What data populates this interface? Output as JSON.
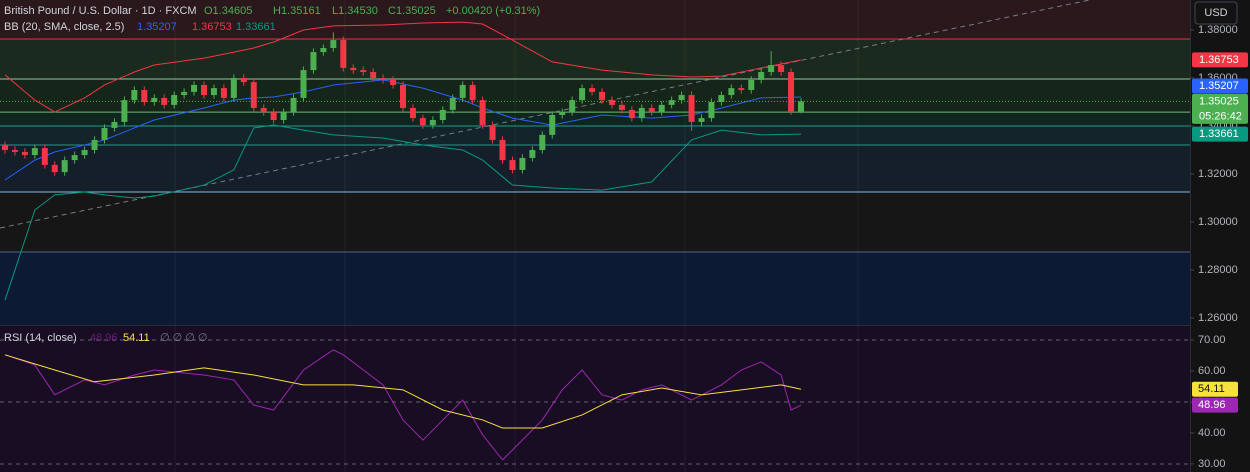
{
  "chart_data": [
    {
      "type": "candlestick",
      "title": "British Pound / U.S. Dollar · 1D · FXCM",
      "ohlc_labels": [
        "O1.34605",
        "H1.35161",
        "L1.34530",
        "C1.35025",
        "+0.00420 (+0.31%)"
      ],
      "currency": "USD",
      "up_color": "#4caf50",
      "down_color": "#f23645",
      "ylim": [
        1.2571,
        1.3925
      ],
      "yticks": [
        {
          "value": 1.38,
          "label": "1.38000"
        },
        {
          "value": 1.36,
          "label": "1.36000"
        },
        {
          "value": 1.34,
          "label": "1.34000"
        },
        {
          "value": 1.32,
          "label": "1.32000"
        },
        {
          "value": 1.3,
          "label": "1.30000"
        },
        {
          "value": 1.28,
          "label": "1.28000"
        },
        {
          "value": 1.26,
          "label": "1.26000"
        }
      ],
      "candles": [
        [
          1.332,
          1.3335,
          1.3285,
          1.33
        ],
        [
          1.33,
          1.3315,
          1.3277,
          1.3292
        ],
        [
          1.3292,
          1.3307,
          1.3264,
          1.3279
        ],
        [
          1.3279,
          1.3323,
          1.3264,
          1.3308
        ],
        [
          1.3308,
          1.3323,
          1.3223,
          1.3238
        ],
        [
          1.3238,
          1.3253,
          1.3193,
          1.3208
        ],
        [
          1.3208,
          1.3273,
          1.3193,
          1.3258
        ],
        [
          1.3258,
          1.3294,
          1.3243,
          1.3279
        ],
        [
          1.3279,
          1.3315,
          1.3264,
          1.33
        ],
        [
          1.33,
          1.3357,
          1.3285,
          1.3342
        ],
        [
          1.3342,
          1.3407,
          1.3327,
          1.3392
        ],
        [
          1.3392,
          1.3432,
          1.3377,
          1.3417
        ],
        [
          1.3417,
          1.3523,
          1.3402,
          1.3508
        ],
        [
          1.3508,
          1.3565,
          1.3493,
          1.355
        ],
        [
          1.355,
          1.3565,
          1.3485,
          1.35
        ],
        [
          1.35,
          1.3532,
          1.3485,
          1.3517
        ],
        [
          1.3517,
          1.3532,
          1.3473,
          1.3488
        ],
        [
          1.3488,
          1.3544,
          1.3473,
          1.3529
        ],
        [
          1.3529,
          1.3557,
          1.3514,
          1.3542
        ],
        [
          1.3542,
          1.3586,
          1.3527,
          1.3571
        ],
        [
          1.3571,
          1.3586,
          1.3514,
          1.3529
        ],
        [
          1.3529,
          1.3573,
          1.3514,
          1.3558
        ],
        [
          1.3558,
          1.3573,
          1.3502,
          1.3517
        ],
        [
          1.3517,
          1.3615,
          1.3502,
          1.36
        ],
        [
          1.36,
          1.3615,
          1.3568,
          1.3583
        ],
        [
          1.3583,
          1.3598,
          1.346,
          1.3475
        ],
        [
          1.3475,
          1.349,
          1.3443,
          1.3458
        ],
        [
          1.3458,
          1.3473,
          1.341,
          1.3425
        ],
        [
          1.3425,
          1.3473,
          1.341,
          1.3458
        ],
        [
          1.3458,
          1.3532,
          1.3443,
          1.3517
        ],
        [
          1.3517,
          1.3648,
          1.3502,
          1.3633
        ],
        [
          1.3633,
          1.3723,
          1.3618,
          1.3708
        ],
        [
          1.3708,
          1.374,
          1.3693,
          1.3725
        ],
        [
          1.3725,
          1.379,
          1.371,
          1.3758
        ],
        [
          1.3758,
          1.3773,
          1.3627,
          1.3642
        ],
        [
          1.3642,
          1.3657,
          1.3618,
          1.3633
        ],
        [
          1.3633,
          1.3648,
          1.361,
          1.3625
        ],
        [
          1.3625,
          1.364,
          1.3585,
          1.36
        ],
        [
          1.36,
          1.3615,
          1.3577,
          1.3592
        ],
        [
          1.3592,
          1.3607,
          1.3556,
          1.3571
        ],
        [
          1.3571,
          1.3586,
          1.346,
          1.3475
        ],
        [
          1.3475,
          1.349,
          1.3418,
          1.3433
        ],
        [
          1.3433,
          1.3448,
          1.3389,
          1.3404
        ],
        [
          1.3404,
          1.344,
          1.3389,
          1.3425
        ],
        [
          1.3425,
          1.3482,
          1.341,
          1.3467
        ],
        [
          1.3467,
          1.3532,
          1.3452,
          1.3517
        ],
        [
          1.3517,
          1.3586,
          1.3502,
          1.3571
        ],
        [
          1.3571,
          1.3586,
          1.3493,
          1.3508
        ],
        [
          1.3508,
          1.3523,
          1.3389,
          1.3404
        ],
        [
          1.3404,
          1.3419,
          1.3327,
          1.3342
        ],
        [
          1.3342,
          1.3357,
          1.3243,
          1.3258
        ],
        [
          1.3258,
          1.3273,
          1.3202,
          1.3217
        ],
        [
          1.3217,
          1.3282,
          1.3202,
          1.3267
        ],
        [
          1.3267,
          1.3315,
          1.3252,
          1.33
        ],
        [
          1.33,
          1.3378,
          1.3285,
          1.3363
        ],
        [
          1.3363,
          1.3461,
          1.3348,
          1.3446
        ],
        [
          1.3446,
          1.3473,
          1.3431,
          1.3458
        ],
        [
          1.3458,
          1.3523,
          1.3443,
          1.3508
        ],
        [
          1.3508,
          1.3573,
          1.3493,
          1.3558
        ],
        [
          1.3558,
          1.3573,
          1.3527,
          1.3542
        ],
        [
          1.3542,
          1.3557,
          1.3493,
          1.3508
        ],
        [
          1.3508,
          1.3523,
          1.3473,
          1.3488
        ],
        [
          1.3488,
          1.3503,
          1.3452,
          1.3467
        ],
        [
          1.3467,
          1.3482,
          1.3418,
          1.3433
        ],
        [
          1.3433,
          1.349,
          1.3418,
          1.3475
        ],
        [
          1.3475,
          1.349,
          1.3443,
          1.3458
        ],
        [
          1.3458,
          1.3503,
          1.3443,
          1.3488
        ],
        [
          1.3488,
          1.3523,
          1.3473,
          1.3508
        ],
        [
          1.3508,
          1.3544,
          1.3493,
          1.3529
        ],
        [
          1.3529,
          1.3544,
          1.338,
          1.3417
        ],
        [
          1.3417,
          1.3448,
          1.3402,
          1.3433
        ],
        [
          1.3433,
          1.3515,
          1.3418,
          1.35
        ],
        [
          1.35,
          1.3544,
          1.3485,
          1.3529
        ],
        [
          1.3529,
          1.3573,
          1.3514,
          1.3558
        ],
        [
          1.3558,
          1.3573,
          1.3535,
          1.355
        ],
        [
          1.355,
          1.3607,
          1.3535,
          1.3592
        ],
        [
          1.3592,
          1.364,
          1.3577,
          1.3625
        ],
        [
          1.3625,
          1.3712,
          1.361,
          1.3654
        ],
        [
          1.3654,
          1.3669,
          1.361,
          1.3625
        ],
        [
          1.3625,
          1.364,
          1.3446,
          1.3461
        ],
        [
          1.34605,
          1.35161,
          1.3453,
          1.35025
        ]
      ],
      "bands": {
        "title": "BB (20, SMA, close, 2.5)",
        "legend_values": [
          1.35207,
          1.36753,
          1.33661
        ],
        "x": [
          0,
          3,
          5,
          8,
          10,
          13,
          15,
          20,
          23,
          25,
          27,
          30,
          33,
          38,
          42,
          46,
          48,
          51,
          55,
          60,
          65,
          69,
          72,
          76,
          80
        ],
        "series": [
          {
            "color": "#2962ff",
            "values": [
              1.3175,
              1.3258,
              1.3292,
              1.3321,
              1.3342,
              1.3392,
              1.3425,
              1.3475,
              1.3508,
              1.3517,
              1.3521,
              1.3542,
              1.3571,
              1.3592,
              1.3558,
              1.3508,
              1.3475,
              1.3433,
              1.3404,
              1.3446,
              1.3433,
              1.3446,
              1.3475,
              1.3517,
              1.3521
            ]
          },
          {
            "color": "#f23645",
            "values": [
              1.3613,
              1.3508,
              1.3458,
              1.3517,
              1.3571,
              1.3625,
              1.3654,
              1.3683,
              1.3708,
              1.3725,
              1.375,
              1.38,
              1.3817,
              1.3821,
              1.3829,
              1.3833,
              1.3825,
              1.3758,
              1.3667,
              1.3633,
              1.3613,
              1.3604,
              1.3608,
              1.3642,
              1.3675
            ]
          },
          {
            "color": "#089981",
            "values": [
              1.2675,
              1.305,
              1.3113,
              1.3125,
              1.3113,
              1.31,
              1.3108,
              1.3154,
              1.3217,
              1.3392,
              1.3404,
              1.3383,
              1.3363,
              1.335,
              1.3321,
              1.33,
              1.3258,
              1.3154,
              1.3142,
              1.3133,
              1.3167,
              1.3342,
              1.3383,
              1.3363,
              1.3366
            ]
          }
        ]
      },
      "levels_top_fill": "#2a181c",
      "levels": [
        {
          "value": 1.37625,
          "color": "#f23645",
          "fill": "#1b2a1e"
        },
        {
          "value": 1.3596,
          "color": "#a5d6a7",
          "fill": "#15251a"
        },
        {
          "value": 1.3458,
          "color": "#81c784",
          "fill": "#0f2520"
        },
        {
          "value": 1.34,
          "color": "#26a69a",
          "fill": "#13252a"
        },
        {
          "value": 1.3321,
          "color": "#26a69a",
          "fill": "#141f2a"
        },
        {
          "value": 1.3125,
          "color": "#90caf9",
          "fill": "#161616"
        },
        {
          "value": 1.2875,
          "color": "#5d6d8f",
          "fill": "#0d1a33"
        }
      ],
      "trendline": {
        "x": [
          -0.5,
          109
        ],
        "values": [
          1.2975,
          1.3925
        ],
        "color": "#787b86"
      },
      "price_tags": [
        {
          "value": 1.36753,
          "color": "#f23645"
        },
        {
          "value": 1.35207,
          "color": "#2962ff"
        },
        {
          "value": 1.35025,
          "color": "#4caf50"
        },
        {
          "value": 1.33661,
          "color": "#089981"
        }
      ],
      "countdown": "05:26:42"
    },
    {
      "type": "line",
      "title": "RSI (14, close)",
      "legend_values": [
        48.96,
        54.11
      ],
      "placeholder": "∅ ∅ ∅ ∅",
      "ylim": [
        27.4,
        74.5
      ],
      "yticks": [
        {
          "value": 70,
          "label": "70.00"
        },
        {
          "value": 60,
          "label": "60.00"
        },
        {
          "value": 50,
          "label": "50.00"
        },
        {
          "value": 40,
          "label": "40.00"
        },
        {
          "value": 30,
          "label": "30.00"
        }
      ],
      "levels": [
        70,
        50,
        30
      ],
      "series": [
        {
          "color": "#9c27b0",
          "x": [
            0,
            3,
            5,
            8,
            10,
            13,
            15,
            20,
            23,
            25,
            27,
            30,
            33,
            34,
            38,
            40,
            42,
            46,
            48,
            50,
            51,
            54,
            56,
            58,
            60,
            62,
            64,
            66,
            69,
            72,
            74,
            76,
            78,
            79,
            80
          ],
          "values": [
            65.2,
            61.9,
            52.3,
            57.1,
            55.5,
            58.7,
            60.3,
            58.7,
            57.1,
            49.0,
            47.4,
            60.3,
            66.8,
            65.2,
            55.5,
            44.2,
            37.7,
            50.6,
            39.4,
            31.3,
            34.5,
            44.2,
            53.9,
            60.3,
            52.3,
            50.6,
            53.9,
            55.5,
            50.6,
            55.5,
            60.3,
            62.9,
            58.7,
            47.4,
            48.96
          ]
        },
        {
          "color": "#f7e13b",
          "x": [
            0,
            5,
            9,
            15,
            20,
            25,
            30,
            35,
            40,
            44,
            48,
            50,
            54,
            58,
            62,
            66,
            70,
            74,
            78,
            80
          ],
          "values": [
            65.2,
            60.3,
            56.5,
            58.7,
            61.0,
            58.7,
            55.5,
            55.5,
            53.9,
            47.4,
            44.2,
            41.6,
            41.6,
            45.8,
            52.3,
            54.5,
            52.3,
            53.9,
            55.5,
            54.11
          ]
        }
      ]
    }
  ]
}
